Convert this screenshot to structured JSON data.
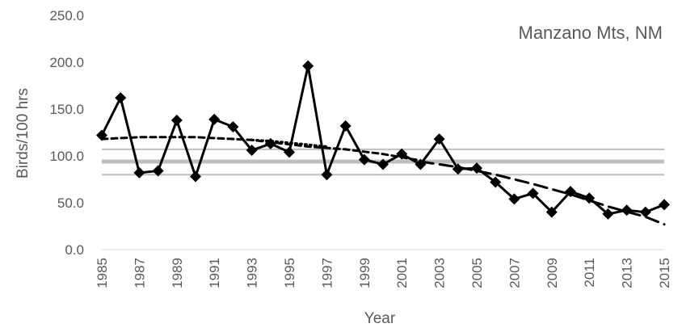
{
  "chart_data": {
    "type": "line",
    "title": "Manzano Mts, NM",
    "xlabel": "Year",
    "ylabel": "Birds/100 hrs",
    "ylim": [
      0,
      250
    ],
    "xlim": [
      1985,
      2015
    ],
    "y_ticks": [
      "0.0",
      "50.0",
      "100.0",
      "150.0",
      "200.0",
      "250.0"
    ],
    "x_ticks": [
      "1985",
      "1987",
      "1989",
      "1991",
      "1993",
      "1995",
      "1997",
      "1999",
      "2001",
      "2003",
      "2005",
      "2007",
      "2009",
      "2011",
      "2013",
      "2015"
    ],
    "grid": false,
    "series": [
      {
        "role": "observed",
        "x": [
          1985,
          1986,
          1987,
          1988,
          1989,
          1990,
          1991,
          1992,
          1993,
          1994,
          1995,
          1996,
          1997,
          1998,
          1999,
          2000,
          2001,
          2002,
          2003,
          2004,
          2005,
          2006,
          2007,
          2008,
          2009,
          2010,
          2011,
          2012,
          2013,
          2014,
          2015
        ],
        "values": [
          122,
          162,
          82,
          84,
          138,
          78,
          139,
          131,
          106,
          113,
          104,
          196,
          80,
          132,
          96,
          91,
          102,
          91,
          118,
          86,
          87,
          72,
          54,
          60,
          40,
          62,
          55,
          38,
          42,
          40,
          48
        ]
      },
      {
        "role": "trend-short-dash",
        "x": [
          1985,
          1987,
          1990,
          1993,
          1996,
          1998,
          2000,
          2002
        ],
        "values": [
          118,
          120,
          120,
          117,
          110,
          107,
          102,
          95
        ]
      },
      {
        "role": "trend-dotted",
        "x": [
          1993,
          1994,
          1995,
          1996,
          1997
        ],
        "values": [
          117,
          116,
          114,
          112,
          110
        ]
      },
      {
        "role": "trend-long-dash",
        "x": [
          2002,
          2004,
          2006,
          2008,
          2010,
          2012,
          2014,
          2015
        ],
        "values": [
          94,
          88,
          80,
          70,
          59,
          46,
          35,
          27
        ]
      }
    ],
    "reference_lines": [
      {
        "role": "mean",
        "y": 94
      },
      {
        "role": "upper-bound",
        "y": 107
      },
      {
        "role": "lower-bound",
        "y": 80
      }
    ],
    "colors": {
      "series": "#000000",
      "reference_mean": "#bfbfbf",
      "reference_bounds": "#bfbfbf",
      "text": "#595959"
    }
  }
}
